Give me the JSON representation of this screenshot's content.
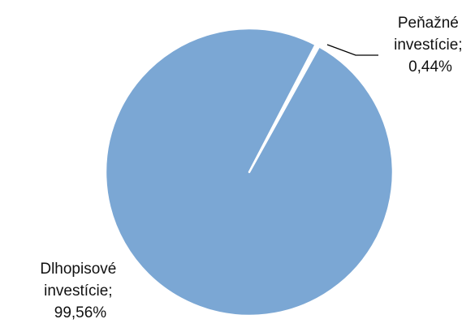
{
  "chart_data": {
    "type": "pie",
    "slices": [
      {
        "label_lines": [
          "Peňažné",
          "investície;",
          "0,44%"
        ],
        "value": 0.44,
        "color": "#ffffff"
      },
      {
        "label_lines": [
          "Dlhopisové",
          "investície;",
          "99,56%"
        ],
        "value": 99.56,
        "color": "#7BA7D4"
      }
    ],
    "start_position": "top",
    "direction": "clockwise",
    "legend": "none",
    "data_labels": "outside with leader line for small slice"
  }
}
